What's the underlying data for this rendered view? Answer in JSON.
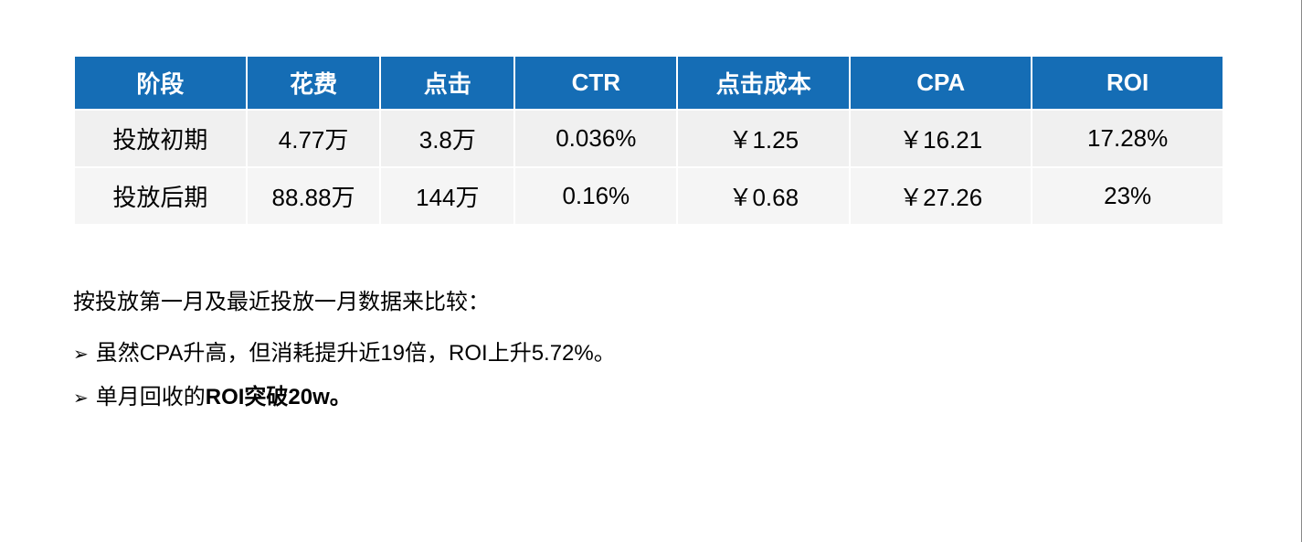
{
  "table": {
    "type": "table",
    "header_bg": "#156db5",
    "header_color": "#ffffff",
    "row_bg": "#f0f0f0",
    "text_color": "#000000",
    "header_fontsize": 26,
    "cell_fontsize": 26,
    "columns": [
      "阶段",
      "花费",
      "点击",
      "CTR",
      "点击成本",
      "CPA",
      "ROI"
    ],
    "rows": [
      [
        "投放初期",
        "4.77万",
        "3.8万",
        "0.036%",
        "￥1.25",
        "￥16.21",
        "17.28%"
      ],
      [
        "投放后期",
        "88.88万",
        "144万",
        "0.16%",
        "￥0.68",
        "￥27.26",
        "23%"
      ]
    ]
  },
  "notes": {
    "intro": "按投放第一月及最近投放一月数据来比较：",
    "bullets": [
      {
        "text": "虽然CPA升高，但消耗提升近19倍，ROI上升5.72%。",
        "bold_part": ""
      },
      {
        "text": "单月回收的",
        "bold_part": "ROI突破20w。"
      }
    ],
    "fontsize": 24,
    "color": "#000000"
  },
  "background_color": "#ffffff"
}
